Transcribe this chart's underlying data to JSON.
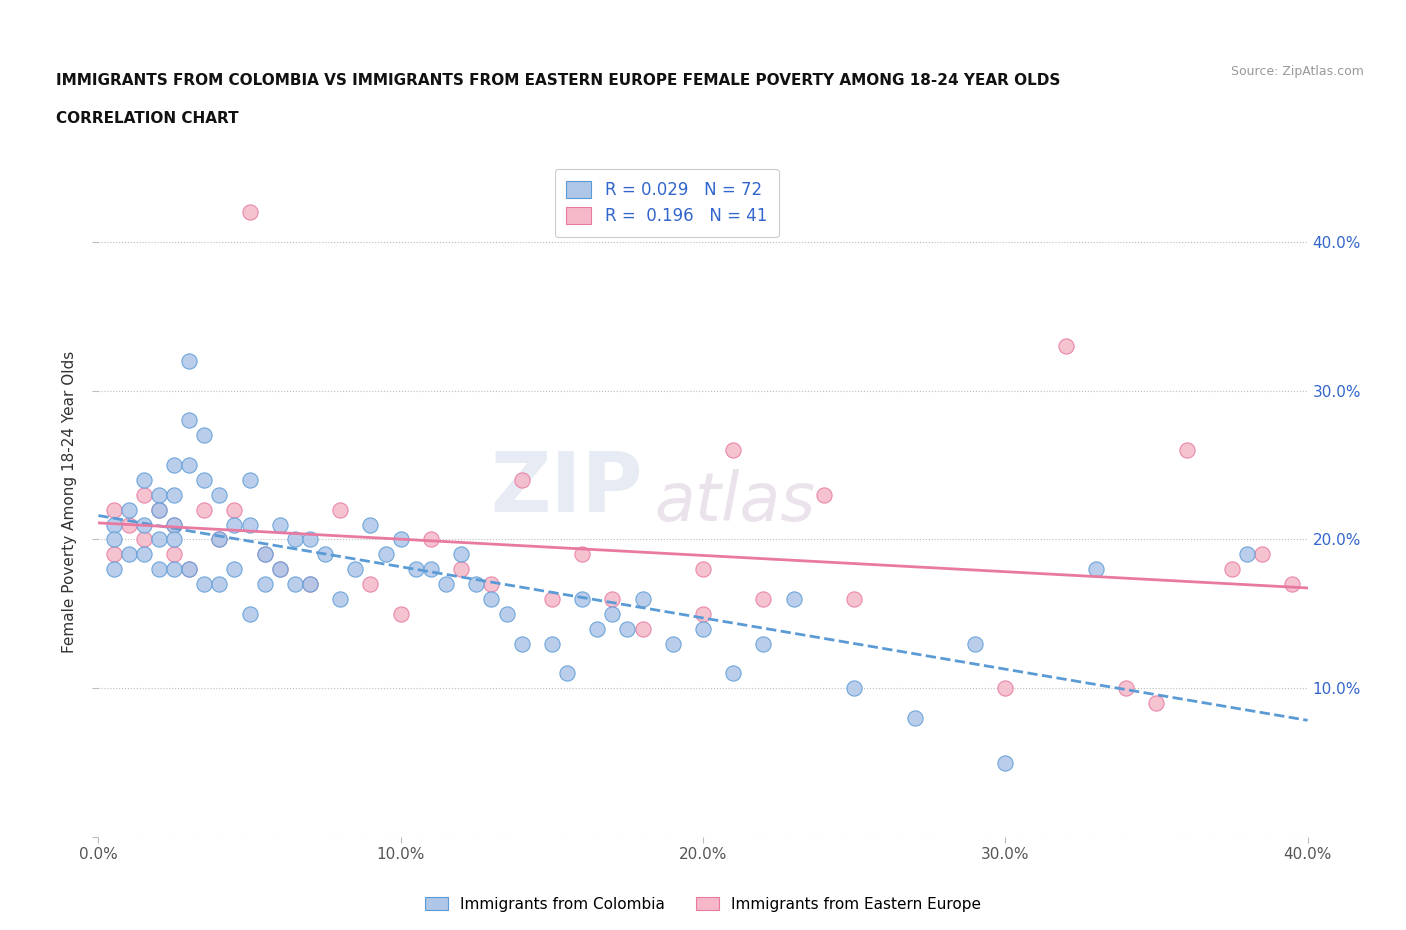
{
  "title_line1": "IMMIGRANTS FROM COLOMBIA VS IMMIGRANTS FROM EASTERN EUROPE FEMALE POVERTY AMONG 18-24 YEAR OLDS",
  "title_line2": "CORRELATION CHART",
  "source_text": "Source: ZipAtlas.com",
  "ylabel": "Female Poverty Among 18-24 Year Olds",
  "xlim": [
    0.0,
    0.4
  ],
  "ylim": [
    0.0,
    0.45
  ],
  "xtick_labels": [
    "0.0%",
    "10.0%",
    "20.0%",
    "30.0%",
    "40.0%"
  ],
  "xtick_vals": [
    0.0,
    0.1,
    0.2,
    0.3,
    0.4
  ],
  "ytick_labels_right": [
    "",
    "10.0%",
    "20.0%",
    "30.0%",
    "40.0%"
  ],
  "ytick_vals": [
    0.0,
    0.1,
    0.2,
    0.3,
    0.4
  ],
  "colombia_color": "#aec6e8",
  "colombia_edge": "#5b9bd5",
  "eastern_color": "#f4b8c8",
  "eastern_edge": "#e879a0",
  "colombia_line_color": "#5b9bd5",
  "eastern_line_color": "#e879a0",
  "colombia_R": 0.029,
  "colombia_N": 72,
  "eastern_R": 0.196,
  "eastern_N": 41,
  "legend_label_colombia": "Immigrants from Colombia",
  "legend_label_eastern": "Immigrants from Eastern Europe",
  "watermark": "ZIPatlas",
  "colombia_x": [
    0.005,
    0.005,
    0.005,
    0.01,
    0.01,
    0.015,
    0.015,
    0.015,
    0.02,
    0.02,
    0.02,
    0.02,
    0.025,
    0.025,
    0.025,
    0.025,
    0.025,
    0.03,
    0.03,
    0.03,
    0.03,
    0.035,
    0.035,
    0.035,
    0.04,
    0.04,
    0.04,
    0.045,
    0.045,
    0.05,
    0.05,
    0.05,
    0.055,
    0.055,
    0.06,
    0.06,
    0.065,
    0.065,
    0.07,
    0.07,
    0.075,
    0.08,
    0.085,
    0.09,
    0.095,
    0.1,
    0.105,
    0.11,
    0.115,
    0.12,
    0.125,
    0.13,
    0.135,
    0.14,
    0.15,
    0.155,
    0.16,
    0.165,
    0.17,
    0.175,
    0.18,
    0.19,
    0.2,
    0.21,
    0.22,
    0.23,
    0.25,
    0.27,
    0.29,
    0.3,
    0.33,
    0.38
  ],
  "colombia_y": [
    0.21,
    0.2,
    0.18,
    0.22,
    0.19,
    0.24,
    0.21,
    0.19,
    0.23,
    0.22,
    0.2,
    0.18,
    0.25,
    0.23,
    0.21,
    0.2,
    0.18,
    0.32,
    0.28,
    0.25,
    0.18,
    0.27,
    0.24,
    0.17,
    0.23,
    0.2,
    0.17,
    0.21,
    0.18,
    0.24,
    0.21,
    0.15,
    0.19,
    0.17,
    0.21,
    0.18,
    0.2,
    0.17,
    0.2,
    0.17,
    0.19,
    0.16,
    0.18,
    0.21,
    0.19,
    0.2,
    0.18,
    0.18,
    0.17,
    0.19,
    0.17,
    0.16,
    0.15,
    0.13,
    0.13,
    0.11,
    0.16,
    0.14,
    0.15,
    0.14,
    0.16,
    0.13,
    0.14,
    0.11,
    0.13,
    0.16,
    0.1,
    0.08,
    0.13,
    0.05,
    0.18,
    0.19
  ],
  "eastern_x": [
    0.005,
    0.005,
    0.01,
    0.015,
    0.015,
    0.02,
    0.025,
    0.025,
    0.03,
    0.035,
    0.04,
    0.045,
    0.05,
    0.055,
    0.06,
    0.07,
    0.08,
    0.09,
    0.1,
    0.11,
    0.12,
    0.13,
    0.14,
    0.15,
    0.16,
    0.17,
    0.18,
    0.2,
    0.2,
    0.21,
    0.22,
    0.24,
    0.25,
    0.3,
    0.32,
    0.34,
    0.35,
    0.36,
    0.375,
    0.385,
    0.395
  ],
  "eastern_y": [
    0.22,
    0.19,
    0.21,
    0.23,
    0.2,
    0.22,
    0.21,
    0.19,
    0.18,
    0.22,
    0.2,
    0.22,
    0.42,
    0.19,
    0.18,
    0.17,
    0.22,
    0.17,
    0.15,
    0.2,
    0.18,
    0.17,
    0.24,
    0.16,
    0.19,
    0.16,
    0.14,
    0.18,
    0.15,
    0.26,
    0.16,
    0.23,
    0.16,
    0.1,
    0.33,
    0.1,
    0.09,
    0.26,
    0.18,
    0.19,
    0.17
  ]
}
